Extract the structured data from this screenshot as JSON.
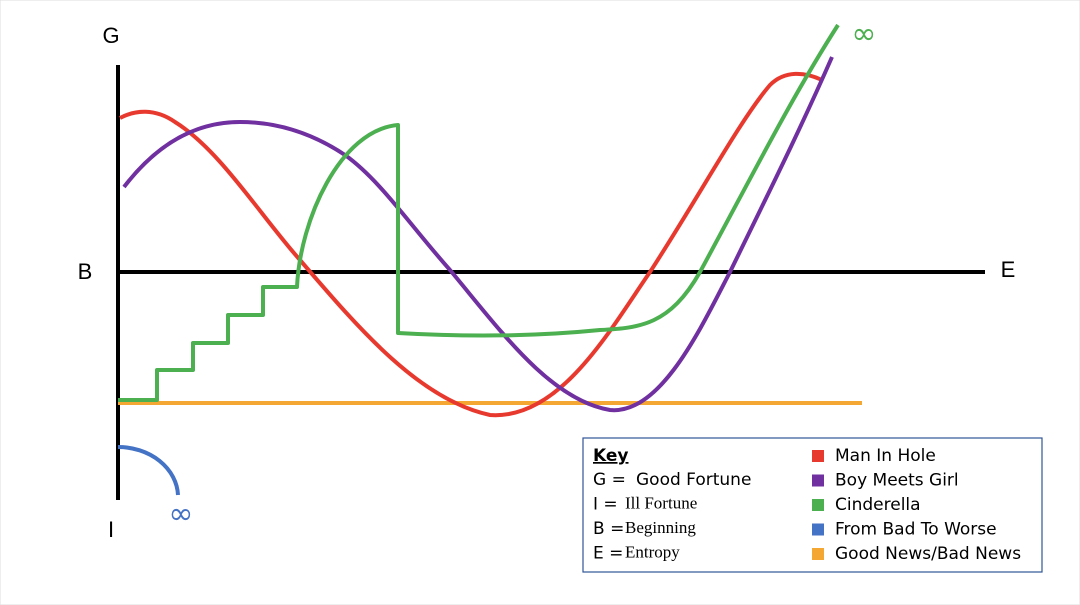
{
  "axes": {
    "top": "G",
    "middle": "B",
    "bottom": "I",
    "right": "E"
  },
  "infinity_marks": [
    "∞",
    "∞"
  ],
  "key": {
    "title": "Key",
    "rows": [
      {
        "symbol": "G =",
        "meaning": "Good Fortune"
      },
      {
        "symbol": "I =",
        "meaning": "Ill Fortune"
      },
      {
        "symbol": "B =",
        "meaning": "Beginning"
      },
      {
        "symbol": "E =",
        "meaning": "Entropy"
      }
    ],
    "stories": [
      {
        "name": "Man In Hole",
        "color": "#e8392f"
      },
      {
        "name": "Boy Meets Girl",
        "color": "#7030a0"
      },
      {
        "name": "Cinderella",
        "color": "#4caf50"
      },
      {
        "name": "From Bad To Worse",
        "color": "#4472c4"
      },
      {
        "name": "Good News/Bad News",
        "color": "#f5a733"
      }
    ]
  }
}
